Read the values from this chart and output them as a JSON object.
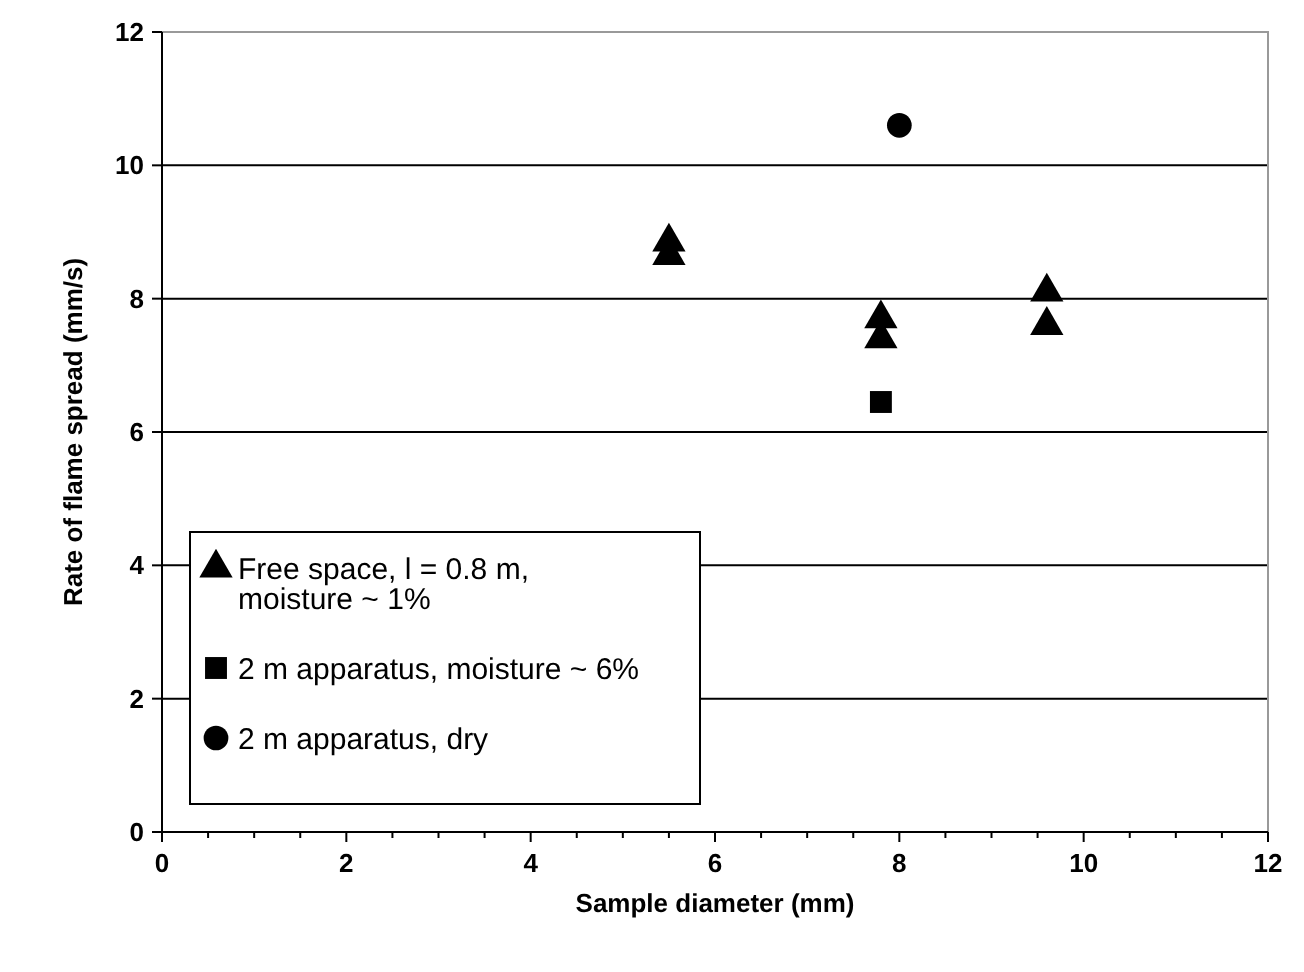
{
  "chart_data": {
    "type": "scatter",
    "xlabel": "Sample diameter (mm)",
    "ylabel": "Rate of flame spread (mm/s)",
    "xlim": [
      0,
      12
    ],
    "xticks": [
      0,
      {
        "value": 0.5,
        "label": null
      },
      {
        "value": 1,
        "label": null
      },
      {
        "value": 1.5,
        "label": null
      },
      2,
      {
        "value": 2.5,
        "label": null
      },
      {
        "value": 3,
        "label": null
      },
      {
        "value": 3.5,
        "label": null
      },
      4,
      {
        "value": 4.5,
        "label": null
      },
      {
        "value": 5,
        "label": null
      },
      {
        "value": 5.5,
        "label": null
      },
      6,
      {
        "value": 6.5,
        "label": null
      },
      {
        "value": 7,
        "label": null
      },
      {
        "value": 7.5,
        "label": null
      },
      8,
      {
        "value": 8.5,
        "label": null
      },
      {
        "value": 9,
        "label": null
      },
      {
        "value": 9.5,
        "label": null
      },
      10,
      {
        "value": 10.5,
        "label": null
      },
      {
        "value": 11,
        "label": null
      },
      {
        "value": 11.5,
        "label": null
      },
      12
    ],
    "ylim": [
      0,
      12
    ],
    "yticks": [
      0,
      2,
      4,
      6,
      8,
      10,
      12
    ],
    "grid": "y",
    "legend": "bottom left",
    "series": [
      {
        "name": "Free space, l = 0.8 m, moisture ~ 1%",
        "color": "#000000",
        "marker": "triangle",
        "x": [
          5.5,
          5.5,
          7.8,
          7.8,
          9.6,
          9.6
        ],
        "values": [
          8.85,
          8.65,
          7.7,
          7.4,
          8.1,
          7.6
        ]
      },
      {
        "name": "2 m apparatus, moisture ~ 6%",
        "color": "#000000",
        "marker": "square",
        "x": [
          7.8
        ],
        "values": [
          6.45
        ]
      },
      {
        "name": "2 m apparatus, dry",
        "color": "#000000",
        "marker": "circle",
        "x": [
          8.0
        ],
        "values": [
          10.6
        ]
      }
    ]
  }
}
